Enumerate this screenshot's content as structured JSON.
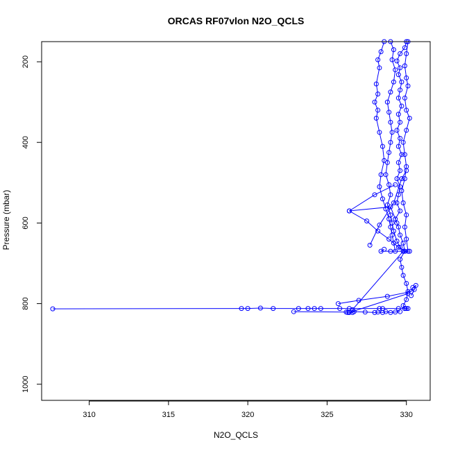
{
  "chart_data": {
    "type": "line",
    "title": "ORCAS RF07vlon N2O_QCLS",
    "xlabel": "N2O_QCLS",
    "ylabel": "Pressure (mbar)",
    "xlim": [
      307.0,
      331.5
    ],
    "ylim": [
      1040,
      150
    ],
    "y_inverted": true,
    "x_ticks": [
      310,
      315,
      320,
      325,
      330
    ],
    "y_ticks": [
      200,
      400,
      600,
      800,
      1000
    ],
    "grid": false,
    "marker": "open-circle",
    "colors": {
      "series": "#0000ff",
      "axis": "#000000"
    },
    "series": [
      {
        "points": [
          [
            330.0,
            150
          ],
          [
            329.9,
            165
          ],
          [
            329.6,
            180
          ],
          [
            329.4,
            198
          ],
          [
            329.6,
            215
          ],
          [
            329.5,
            232
          ],
          [
            329.7,
            250
          ],
          [
            329.6,
            270
          ],
          [
            329.5,
            290
          ],
          [
            329.7,
            310
          ],
          [
            329.5,
            330
          ],
          [
            329.6,
            350
          ],
          [
            329.4,
            370
          ],
          [
            329.6,
            390
          ],
          [
            329.5,
            410
          ],
          [
            329.7,
            430
          ],
          [
            329.5,
            450
          ],
          [
            329.6,
            470
          ],
          [
            329.4,
            490
          ],
          [
            329.6,
            510
          ],
          [
            329.5,
            530
          ],
          [
            329.4,
            550
          ],
          [
            329.6,
            570
          ],
          [
            329.3,
            590
          ],
          [
            329.5,
            610
          ],
          [
            329.6,
            630
          ],
          [
            329.8,
            650
          ],
          [
            329.9,
            670
          ],
          [
            329.6,
            690
          ],
          [
            329.7,
            710
          ],
          [
            329.8,
            730
          ],
          [
            330.0,
            750
          ],
          [
            330.1,
            770
          ],
          [
            330.0,
            790
          ],
          [
            329.8,
            805
          ],
          [
            329.9,
            812
          ]
        ]
      },
      {
        "points": [
          [
            328.6,
            150
          ],
          [
            328.4,
            175
          ],
          [
            328.2,
            195
          ],
          [
            328.3,
            215
          ],
          [
            328.1,
            255
          ],
          [
            328.2,
            280
          ],
          [
            328.0,
            300
          ],
          [
            328.2,
            320
          ],
          [
            328.1,
            340
          ],
          [
            328.3,
            375
          ],
          [
            328.5,
            410
          ],
          [
            328.6,
            445
          ],
          [
            328.4,
            480
          ],
          [
            328.3,
            510
          ],
          [
            328.5,
            540
          ],
          [
            328.7,
            565
          ],
          [
            328.9,
            590
          ],
          [
            329.0,
            610
          ],
          [
            329.1,
            630
          ],
          [
            329.2,
            650
          ],
          [
            329.3,
            670
          ]
        ]
      },
      {
        "points": [
          [
            329.0,
            150
          ],
          [
            329.2,
            170
          ],
          [
            329.1,
            195
          ],
          [
            329.3,
            220
          ],
          [
            329.2,
            250
          ],
          [
            329.0,
            275
          ],
          [
            328.8,
            300
          ],
          [
            328.9,
            325
          ],
          [
            329.0,
            350
          ],
          [
            329.1,
            375
          ],
          [
            329.0,
            400
          ],
          [
            328.9,
            425
          ],
          [
            328.8,
            450
          ],
          [
            328.7,
            480
          ],
          [
            328.9,
            505
          ],
          [
            329.0,
            530
          ],
          [
            328.8,
            555
          ],
          [
            329.0,
            580
          ],
          [
            329.1,
            600
          ],
          [
            329.2,
            620
          ],
          [
            329.4,
            645
          ],
          [
            329.6,
            660
          ],
          [
            329.8,
            670
          ]
        ]
      },
      {
        "points": [
          [
            330.1,
            150
          ],
          [
            330.0,
            180
          ],
          [
            329.9,
            210
          ],
          [
            330.0,
            240
          ],
          [
            330.1,
            260
          ],
          [
            329.9,
            290
          ],
          [
            330.0,
            320
          ],
          [
            330.2,
            340
          ],
          [
            330.0,
            370
          ],
          [
            329.8,
            400
          ],
          [
            329.9,
            430
          ],
          [
            330.0,
            460
          ],
          [
            329.9,
            490
          ],
          [
            329.7,
            520
          ],
          [
            329.8,
            550
          ],
          [
            330.0,
            580
          ],
          [
            329.9,
            610
          ],
          [
            330.0,
            640
          ],
          [
            330.1,
            670
          ]
        ]
      },
      {
        "points": [
          [
            326.4,
            570
          ],
          [
            327.5,
            595
          ],
          [
            328.2,
            620
          ],
          [
            328.9,
            640
          ],
          [
            329.5,
            660
          ],
          [
            329.9,
            670
          ],
          [
            330.2,
            670
          ],
          [
            329.0,
            670
          ],
          [
            328.4,
            670
          ],
          [
            328.6,
            665
          ]
        ]
      },
      {
        "points": [
          [
            329.3,
            505
          ],
          [
            328.0,
            530
          ],
          [
            326.4,
            570
          ],
          [
            329.0,
            560
          ],
          [
            329.4,
            600
          ]
        ]
      },
      {
        "points": [
          [
            327.7,
            655
          ],
          [
            328.3,
            605
          ],
          [
            329.2,
            550
          ],
          [
            329.7,
            490
          ],
          [
            330.0,
            470
          ]
        ]
      },
      {
        "points": [
          [
            307.7,
            813
          ],
          [
            319.6,
            812
          ],
          [
            320.0,
            812
          ],
          [
            320.8,
            811
          ],
          [
            321.6,
            812
          ],
          [
            323.2,
            812
          ],
          [
            323.8,
            812
          ],
          [
            324.2,
            812
          ],
          [
            324.6,
            812
          ],
          [
            325.8,
            812
          ],
          [
            326.4,
            812
          ],
          [
            328.3,
            812
          ],
          [
            328.5,
            812
          ],
          [
            329.5,
            812
          ],
          [
            329.9,
            812
          ],
          [
            330.0,
            812
          ],
          [
            330.1,
            812
          ]
        ]
      },
      {
        "points": [
          [
            322.9,
            820
          ],
          [
            326.2,
            821
          ],
          [
            326.3,
            822
          ],
          [
            326.4,
            821
          ],
          [
            326.6,
            822
          ],
          [
            326.7,
            820
          ],
          [
            327.4,
            821
          ],
          [
            328.0,
            822
          ],
          [
            328.2,
            821
          ],
          [
            328.5,
            822
          ],
          [
            328.7,
            820
          ],
          [
            329.0,
            822
          ],
          [
            329.3,
            821
          ],
          [
            329.6,
            820
          ]
        ]
      },
      {
        "points": [
          [
            325.7,
            800
          ],
          [
            327.0,
            792
          ],
          [
            328.8,
            782
          ],
          [
            330.3,
            770
          ],
          [
            330.4,
            760
          ],
          [
            330.6,
            755
          ],
          [
            330.5,
            765
          ],
          [
            330.3,
            780
          ]
        ]
      },
      {
        "points": [
          [
            326.6,
            815
          ],
          [
            329.8,
            670
          ]
        ]
      },
      {
        "points": [
          [
            326.4,
            822
          ],
          [
            330.1,
            775
          ]
        ]
      }
    ]
  }
}
